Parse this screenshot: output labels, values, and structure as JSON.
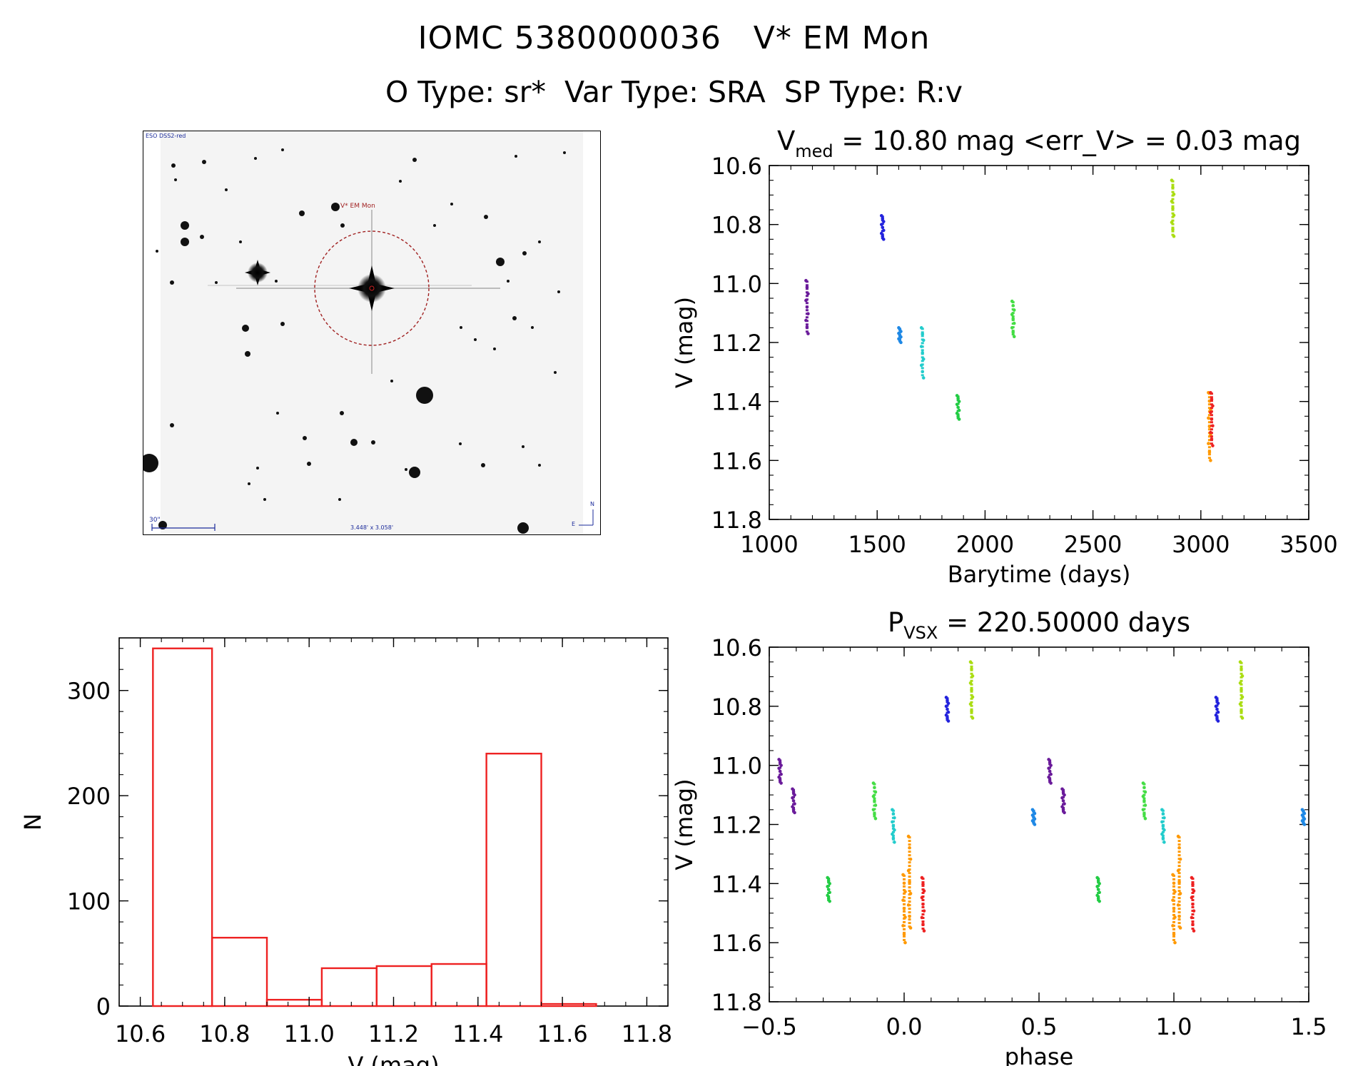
{
  "header": {
    "line1": "IOMC 5380000036   V* EM Mon",
    "line2": "O Type: sr*  Var Type: SRA  SP Type: R:v"
  },
  "finder_chart": {
    "survey_label": "ESO DSS2-red",
    "target_label": "V* EM Mon",
    "scale_label": "30\"",
    "fov_label": "3.448' x 3.058'",
    "north_label": "N",
    "east_label": "E"
  },
  "chart_data": [
    {
      "type": "scatter",
      "name": "light-curve",
      "title_parts": {
        "main": "V",
        "sub": "med",
        "rest": " = 10.80 mag <err_V> = 0.03 mag"
      },
      "xlabel": "Barytime (days)",
      "ylabel": "V (mag)",
      "xlim": [
        1000,
        3500
      ],
      "ylim": [
        10.6,
        11.8
      ],
      "y_inverted": true,
      "xticks": [
        1000,
        1500,
        2000,
        2500,
        3000,
        3500
      ],
      "xticklabels": [
        "1000",
        "1500",
        "2000",
        "2500",
        "3000",
        "3500"
      ],
      "yticks": [
        10.6,
        10.8,
        11.0,
        11.2,
        11.4,
        11.6,
        11.8
      ],
      "yticklabels": [
        "10.6",
        "10.8",
        "11.0",
        "11.2",
        "11.4",
        "11.6",
        "11.8"
      ],
      "groups": [
        {
          "x": 1175,
          "ymin": 10.99,
          "ymax": 11.17,
          "color": "#6a1b9a"
        },
        {
          "x": 1525,
          "ymin": 10.77,
          "ymax": 10.85,
          "color": "#2222dd"
        },
        {
          "x": 1605,
          "ymin": 11.15,
          "ymax": 11.2,
          "color": "#1e88e5"
        },
        {
          "x": 1710,
          "ymin": 11.15,
          "ymax": 11.32,
          "color": "#22cccc"
        },
        {
          "x": 1875,
          "ymin": 11.38,
          "ymax": 11.46,
          "color": "#22cc44"
        },
        {
          "x": 2130,
          "ymin": 11.06,
          "ymax": 11.18,
          "color": "#44dd44"
        },
        {
          "x": 2870,
          "ymin": 10.65,
          "ymax": 10.84,
          "color": "#aadd11"
        },
        {
          "x": 3040,
          "ymin": 11.37,
          "ymax": 11.6,
          "color": "#ff9900"
        },
        {
          "x": 3050,
          "ymin": 11.37,
          "ymax": 11.55,
          "color": "#ee2222"
        }
      ]
    },
    {
      "type": "bar",
      "name": "histogram",
      "xlabel": "V (mag)",
      "ylabel": "N",
      "xlim": [
        10.55,
        11.85
      ],
      "ylim": [
        0,
        350
      ],
      "xticks": [
        10.6,
        10.8,
        11.0,
        11.2,
        11.4,
        11.6,
        11.8
      ],
      "xticklabels": [
        "10.6",
        "10.8",
        "11.0",
        "11.2",
        "11.4",
        "11.6",
        "11.8"
      ],
      "yticks": [
        0,
        100,
        200,
        300
      ],
      "yticklabels": [
        "0",
        "100",
        "200",
        "300"
      ],
      "bin_edges": [
        10.63,
        10.77,
        10.9,
        11.03,
        11.16,
        11.29,
        11.42,
        11.55,
        11.68
      ],
      "values": [
        340,
        65,
        6,
        36,
        38,
        40,
        240,
        2
      ],
      "color": "#ee2222"
    },
    {
      "type": "scatter",
      "name": "phased-light-curve",
      "title_parts": {
        "main": "P",
        "sub": "VSX",
        "rest": " = 220.50000 days"
      },
      "xlabel": "phase",
      "ylabel": "V (mag)",
      "xlim": [
        -0.5,
        1.5
      ],
      "ylim": [
        10.6,
        11.8
      ],
      "y_inverted": true,
      "xticks": [
        -0.5,
        0.0,
        0.5,
        1.0,
        1.5
      ],
      "xticklabels": [
        "−0.5",
        "0.0",
        "0.5",
        "1.0",
        "1.5"
      ],
      "yticks": [
        10.6,
        10.8,
        11.0,
        11.2,
        11.4,
        11.6,
        11.8
      ],
      "yticklabels": [
        "10.6",
        "10.8",
        "11.0",
        "11.2",
        "11.4",
        "11.6",
        "11.8"
      ],
      "groups": [
        {
          "x": -0.46,
          "ymin": 10.98,
          "ymax": 11.06,
          "color": "#6a1b9a"
        },
        {
          "x": -0.41,
          "ymin": 11.08,
          "ymax": 11.16,
          "color": "#6a1b9a"
        },
        {
          "x": -0.28,
          "ymin": 11.38,
          "ymax": 11.46,
          "color": "#22cc44"
        },
        {
          "x": -0.11,
          "ymin": 11.06,
          "ymax": 11.18,
          "color": "#44dd44"
        },
        {
          "x": -0.04,
          "ymin": 11.15,
          "ymax": 11.26,
          "color": "#22cccc"
        },
        {
          "x": 0.0,
          "ymin": 11.37,
          "ymax": 11.6,
          "color": "#ff9900"
        },
        {
          "x": 0.02,
          "ymin": 11.24,
          "ymax": 11.55,
          "color": "#ff9900"
        },
        {
          "x": 0.07,
          "ymin": 11.38,
          "ymax": 11.56,
          "color": "#ee2222"
        },
        {
          "x": 0.16,
          "ymin": 10.77,
          "ymax": 10.85,
          "color": "#2222dd"
        },
        {
          "x": 0.25,
          "ymin": 10.65,
          "ymax": 10.84,
          "color": "#aadd11"
        },
        {
          "x": 0.48,
          "ymin": 11.15,
          "ymax": 11.2,
          "color": "#1e88e5"
        },
        {
          "x": 0.54,
          "ymin": 10.98,
          "ymax": 11.06,
          "color": "#6a1b9a"
        },
        {
          "x": 0.59,
          "ymin": 11.08,
          "ymax": 11.16,
          "color": "#6a1b9a"
        },
        {
          "x": 0.72,
          "ymin": 11.38,
          "ymax": 11.46,
          "color": "#22cc44"
        },
        {
          "x": 0.89,
          "ymin": 11.06,
          "ymax": 11.18,
          "color": "#44dd44"
        },
        {
          "x": 0.96,
          "ymin": 11.15,
          "ymax": 11.26,
          "color": "#22cccc"
        },
        {
          "x": 1.0,
          "ymin": 11.37,
          "ymax": 11.6,
          "color": "#ff9900"
        },
        {
          "x": 1.02,
          "ymin": 11.24,
          "ymax": 11.55,
          "color": "#ff9900"
        },
        {
          "x": 1.07,
          "ymin": 11.38,
          "ymax": 11.56,
          "color": "#ee2222"
        },
        {
          "x": 1.16,
          "ymin": 10.77,
          "ymax": 10.85,
          "color": "#2222dd"
        },
        {
          "x": 1.25,
          "ymin": 10.65,
          "ymax": 10.84,
          "color": "#aadd11"
        },
        {
          "x": 1.48,
          "ymin": 11.15,
          "ymax": 11.2,
          "color": "#1e88e5"
        }
      ]
    }
  ]
}
